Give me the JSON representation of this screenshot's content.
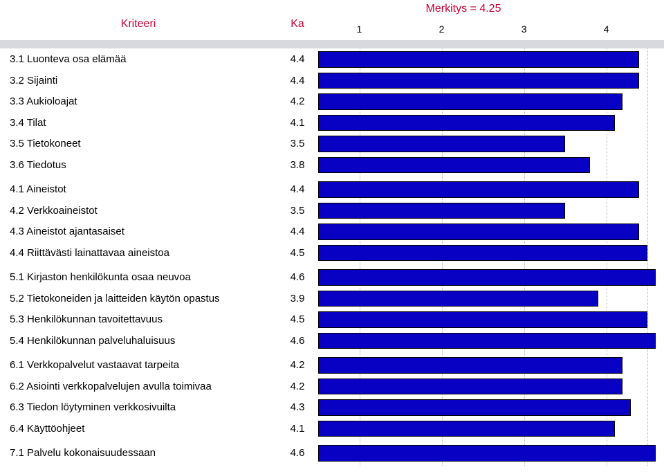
{
  "header": {
    "criterion_label": "Kriteeri",
    "ka_label": "Ka",
    "merkitys_text": "Merkitys = 4.25"
  },
  "axis": {
    "min": 0.5,
    "max": 4.7,
    "ticks": [
      {
        "value": 1,
        "label": "1"
      },
      {
        "value": 2,
        "label": "2"
      },
      {
        "value": 3,
        "label": "3"
      },
      {
        "value": 4,
        "label": "4"
      }
    ]
  },
  "styling": {
    "bar_color": "#0800c2",
    "bar_border": "#000000",
    "header_band_color": "#d8d8df",
    "header_text_color": "#cc0033",
    "gridline_color": "#b8b8c0",
    "background_color": "#ffffff",
    "font_family": "Arial",
    "criterion_fontsize": 15,
    "header_fontsize": 16
  },
  "rows": [
    {
      "criterion": "3.1 Luonteva osa elämää",
      "ka": "4.4",
      "value": 4.4,
      "group_start": true
    },
    {
      "criterion": "3.2 Sijainti",
      "ka": "4.4",
      "value": 4.4
    },
    {
      "criterion": "3.3 Aukioloajat",
      "ka": "4.2",
      "value": 4.2
    },
    {
      "criterion": "3.4 Tilat",
      "ka": "4.1",
      "value": 4.1
    },
    {
      "criterion": "3.5 Tietokoneet",
      "ka": "3.5",
      "value": 3.5
    },
    {
      "criterion": "3.6 Tiedotus",
      "ka": "3.8",
      "value": 3.8
    },
    {
      "criterion": "4.1 Aineistot",
      "ka": "4.4",
      "value": 4.4,
      "group_start": true
    },
    {
      "criterion": "4.2 Verkkoaineistot",
      "ka": "3.5",
      "value": 3.5
    },
    {
      "criterion": "4.3 Aineistot ajantasaiset",
      "ka": "4.4",
      "value": 4.4
    },
    {
      "criterion": "4.4 Riittävästi lainattavaa aineistoa",
      "ka": "4.5",
      "value": 4.5
    },
    {
      "criterion": "5.1 Kirjaston henkilökunta osaa neuvoa",
      "ka": "4.6",
      "value": 4.6,
      "group_start": true
    },
    {
      "criterion": "5.2 Tietokoneiden ja laitteiden käytön opastus",
      "ka": "3.9",
      "value": 3.9
    },
    {
      "criterion": "5.3 Henkilökunnan tavoitettavuus",
      "ka": "4.5",
      "value": 4.5
    },
    {
      "criterion": "5.4 Henkilökunnan palveluhaluisuus",
      "ka": "4.6",
      "value": 4.6
    },
    {
      "criterion": "6.1 Verkkopalvelut vastaavat tarpeita",
      "ka": "4.2",
      "value": 4.2,
      "group_start": true
    },
    {
      "criterion": "6.2 Asiointi verkkopalvelujen avulla toimivaa",
      "ka": "4.2",
      "value": 4.2
    },
    {
      "criterion": "6.3 Tiedon löytyminen verkkosivuilta",
      "ka": "4.3",
      "value": 4.3
    },
    {
      "criterion": "6.4 Käyttöohjeet",
      "ka": "4.1",
      "value": 4.1
    },
    {
      "criterion": "7.1 Palvelu kokonaisuudessaan",
      "ka": "4.6",
      "value": 4.6,
      "group_start": true
    }
  ]
}
